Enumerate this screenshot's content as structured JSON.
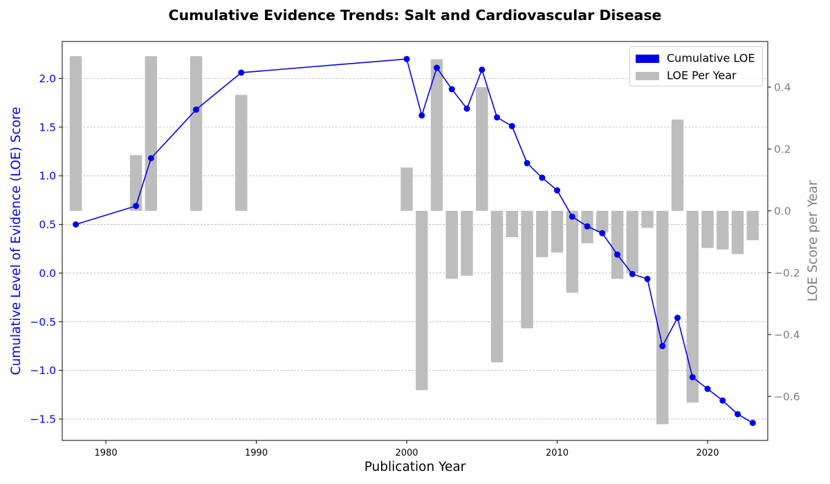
{
  "chart_data": {
    "type": "bar+line",
    "title": "Cumulative Evidence Trends: Salt and Cardiovascular Disease",
    "xlabel": "Publication Year",
    "ylabel_left": "Cumulative Level of Evidence (LOE) Score",
    "ylabel_right": "LOE Score per Year",
    "xlim": [
      1977.1,
      2024.0
    ],
    "ylim_left": [
      -1.72,
      2.38
    ],
    "ylim_right": [
      -0.7425,
      0.5475
    ],
    "x_ticks": [
      1980,
      1990,
      2000,
      2010,
      2020
    ],
    "y_left_ticks": [
      -1.5,
      -1.0,
      -0.5,
      0.0,
      0.5,
      1.0,
      1.5,
      2.0
    ],
    "y_right_ticks": [
      -0.6,
      -0.4,
      -0.2,
      0.0,
      0.2,
      0.4
    ],
    "grid": "horizontal dashed",
    "legend_position": "top-right",
    "colors": {
      "line": "#0000ee",
      "bars": "#bdbdbd",
      "left_axis": "#0000ee",
      "right_axis": "#7f7f7f"
    },
    "series": [
      {
        "name": "Cumulative LOE",
        "type": "line",
        "axis": "left",
        "x": [
          1978,
          1982,
          1983,
          1986,
          1989,
          2000,
          2001,
          2002,
          2003,
          2004,
          2005,
          2006,
          2007,
          2008,
          2009,
          2010,
          2011,
          2012,
          2013,
          2014,
          2015,
          2016,
          2017,
          2018,
          2019,
          2020,
          2021,
          2022,
          2023
        ],
        "values": [
          0.5,
          0.69,
          1.18,
          1.68,
          2.06,
          2.2,
          1.62,
          2.11,
          1.89,
          1.69,
          2.09,
          1.6,
          1.51,
          1.13,
          0.98,
          0.85,
          0.58,
          0.48,
          0.41,
          0.19,
          -0.01,
          -0.06,
          -0.75,
          -0.46,
          -1.07,
          -1.19,
          -1.31,
          -1.45,
          -1.54
        ]
      },
      {
        "name": "LOE Per Year",
        "type": "bar",
        "axis": "right",
        "x": [
          1978,
          1982,
          1983,
          1986,
          1989,
          2000,
          2001,
          2002,
          2003,
          2004,
          2005,
          2006,
          2007,
          2008,
          2009,
          2010,
          2011,
          2012,
          2013,
          2014,
          2015,
          2016,
          2017,
          2018,
          2019,
          2020,
          2021,
          2022,
          2023
        ],
        "values": [
          0.5,
          0.18,
          0.5,
          0.5,
          0.375,
          0.14,
          -0.58,
          0.49,
          -0.22,
          -0.21,
          0.4,
          -0.49,
          -0.085,
          -0.38,
          -0.15,
          -0.135,
          -0.265,
          -0.105,
          -0.07,
          -0.22,
          -0.2,
          -0.055,
          -0.69,
          0.295,
          -0.62,
          -0.12,
          -0.125,
          -0.14,
          -0.095
        ]
      }
    ]
  }
}
